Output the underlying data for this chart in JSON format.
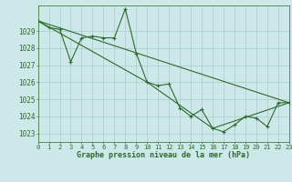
{
  "title": "Graphe pression niveau de la mer (hPa)",
  "bg_color": "#cce8e8",
  "grid_color": "#aacccc",
  "line_color": "#2d6a2d",
  "series": [
    {
      "x": [
        0,
        1,
        2,
        3,
        4,
        5,
        6,
        7,
        8,
        9,
        10,
        11,
        12,
        13,
        14,
        15,
        16,
        17,
        18,
        19,
        20,
        21,
        22,
        23
      ],
      "y": [
        1029.6,
        1029.2,
        1029.1,
        1027.2,
        1028.6,
        1028.7,
        1028.6,
        1028.6,
        1030.3,
        1027.7,
        1026.0,
        1025.8,
        1025.9,
        1024.5,
        1024.0,
        1024.4,
        1023.3,
        1023.1,
        1023.5,
        1024.0,
        1023.9,
        1023.4,
        1024.8,
        1024.8
      ],
      "has_markers": true
    },
    {
      "x": [
        0,
        23
      ],
      "y": [
        1029.6,
        1024.8
      ],
      "has_markers": false
    },
    {
      "x": [
        0,
        10,
        16,
        23
      ],
      "y": [
        1029.6,
        1026.0,
        1023.3,
        1024.8
      ],
      "has_markers": false
    }
  ],
  "xlim": [
    0,
    23
  ],
  "ylim": [
    1022.5,
    1030.5
  ],
  "yticks": [
    1023,
    1024,
    1025,
    1026,
    1027,
    1028,
    1029
  ],
  "xticks": [
    0,
    1,
    2,
    3,
    4,
    5,
    6,
    7,
    8,
    9,
    10,
    11,
    12,
    13,
    14,
    15,
    16,
    17,
    18,
    19,
    20,
    21,
    22,
    23
  ],
  "xlabel_fontsize": 6.0,
  "tick_fontsize": 5.0,
  "linewidth": 0.8
}
